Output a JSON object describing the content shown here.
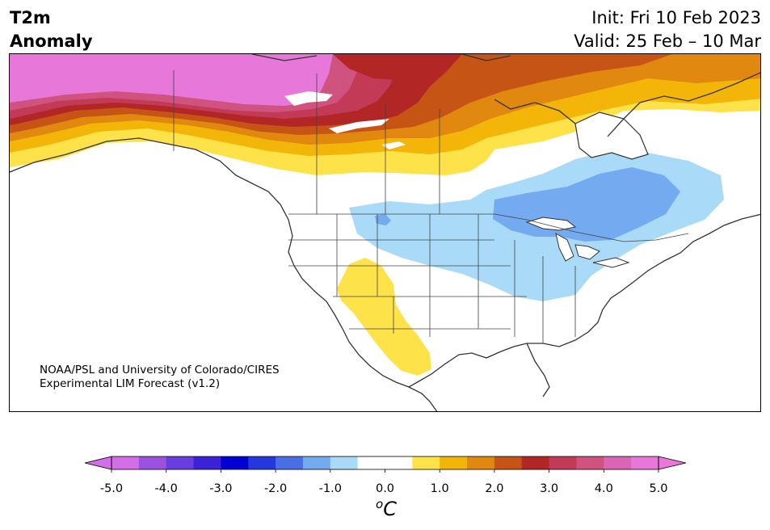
{
  "title": {
    "left_line1": "T2m",
    "left_line2": "Anomaly",
    "init": "Init: Fri 10 Feb 2023",
    "valid": "Valid: 25 Feb – 10 Mar"
  },
  "map": {
    "region": "North America",
    "credit_line1": "NOAA/PSL and University of Colorado/CIRES",
    "credit_line2": "Experimental LIM Forecast (v1.2)"
  },
  "colorbar": {
    "unit_symbol": "o",
    "unit_letter": "C",
    "tick_labels": [
      "-5.0",
      "-4.0",
      "-3.0",
      "-2.0",
      "-1.0",
      "0.0",
      "1.0",
      "2.0",
      "3.0",
      "4.0",
      "5.0"
    ],
    "colors": [
      "#d36de8",
      "#9c52e0",
      "#6a3de0",
      "#3a22d6",
      "#0000d2",
      "#2438dc",
      "#4a6ee6",
      "#74aaf0",
      "#a9daf8",
      "#ffffff",
      "#ffffff",
      "#fde24a",
      "#f2b508",
      "#e08810",
      "#c65414",
      "#b22626",
      "#c23a56",
      "#d0527e",
      "#dc64b6",
      "#e877da"
    ],
    "under_color": "#d36de8",
    "over_color": "#e877da"
  }
}
